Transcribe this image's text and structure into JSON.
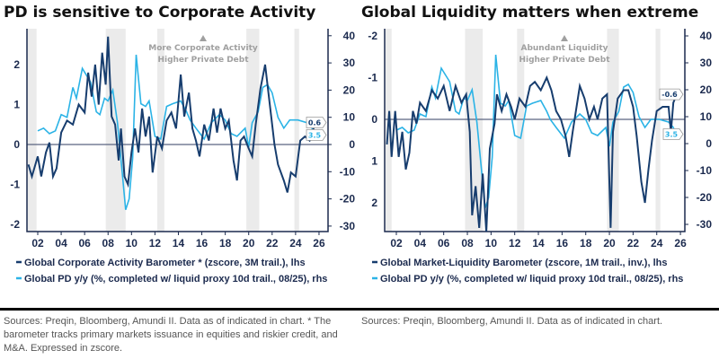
{
  "colors": {
    "dark": "#173d6e",
    "light": "#2bb3e6",
    "axis": "#1b2a4e",
    "shade": "#ebebeb"
  },
  "chart_data": [
    {
      "type": "line",
      "title": "PD is sensitive to Corporate Activity",
      "x_ticks": [
        "02",
        "04",
        "06",
        "08",
        "10",
        "12",
        "14",
        "16",
        "18",
        "20",
        "22",
        "24",
        "26"
      ],
      "y_left_ticks": [
        "2",
        "1",
        "0",
        "-1",
        "-2"
      ],
      "y_left_range": [
        -2.2,
        2.9
      ],
      "y_right_ticks": [
        "40",
        "30",
        "20",
        "10",
        "0",
        "-10",
        "-20",
        "-30"
      ],
      "y_right_range": [
        -32,
        43
      ],
      "annotation": [
        "More Corporate Activity",
        "Higher Private Debt"
      ],
      "shaded_periods": [
        [
          2001.1,
          2001.9
        ],
        [
          2007.8,
          2009.5
        ],
        [
          2012.2,
          2012.8
        ],
        [
          2019.8,
          2020.9
        ],
        [
          2023.9,
          2024.3
        ]
      ],
      "end_labels": {
        "lhs": "0.6",
        "rhs": "3.5"
      },
      "series": [
        {
          "name": "Global Corporate Activity Barometer * (zscore, 3M trail.), lhs",
          "axis": "left",
          "color": "dark",
          "x": [
            2001.2,
            2001.5,
            2002,
            2002.3,
            2002.7,
            2003,
            2003.3,
            2003.6,
            2004,
            2004.5,
            2005,
            2005.5,
            2006,
            2006.3,
            2006.6,
            2006.9,
            2007.2,
            2007.5,
            2007.8,
            2008,
            2008.3,
            2008.6,
            2008.9,
            2009.1,
            2009.4,
            2009.7,
            2010,
            2010.3,
            2010.6,
            2010.9,
            2011.2,
            2011.5,
            2011.8,
            2012.2,
            2012.6,
            2013,
            2013.4,
            2013.8,
            2014.2,
            2014.5,
            2014.9,
            2015.2,
            2015.5,
            2015.8,
            2016.2,
            2016.6,
            2017,
            2017.3,
            2017.6,
            2018,
            2018.3,
            2018.7,
            2019,
            2019.3,
            2019.6,
            2020,
            2020.3,
            2020.6,
            2021,
            2021.4,
            2021.8,
            2022.2,
            2022.5,
            2023,
            2023.3,
            2023.6,
            2024,
            2024.4,
            2024.8,
            2025.2,
            2025.7
          ],
          "y": [
            -0.5,
            -0.8,
            -0.3,
            -0.8,
            -0.2,
            0.05,
            -0.8,
            -0.6,
            0.3,
            0.6,
            0.5,
            1.0,
            0.8,
            1.8,
            1.2,
            2.0,
            1.0,
            2.3,
            1.5,
            2.7,
            0.7,
            0.5,
            -0.4,
            0.4,
            -0.8,
            -1.0,
            -0.2,
            0.4,
            -0.2,
            0.9,
            0.2,
            0.7,
            -0.7,
            0.2,
            -0.1,
            0.6,
            0.8,
            0.4,
            1.75,
            0.7,
            1.3,
            0.4,
            0.1,
            -0.3,
            0.5,
            0.1,
            0.9,
            0.3,
            0.9,
            0.4,
            0.6,
            -0.4,
            -0.9,
            0.1,
            0.2,
            -0.1,
            -0.3,
            0.5,
            1.4,
            2.0,
            1.0,
            0.0,
            -0.5,
            -0.9,
            -1.2,
            -0.7,
            -0.8,
            0.1,
            0.2,
            0.1,
            0.55
          ]
        },
        {
          "name": "Global PD y/y (%, completed w/ liquid proxy 10d trail., 08/25), rhs",
          "axis": "right",
          "color": "light",
          "x": [
            2002,
            2002.5,
            2003,
            2003.5,
            2004,
            2004.5,
            2005,
            2005.3,
            2005.8,
            2006.5,
            2007,
            2007.3,
            2007.7,
            2008,
            2008.4,
            2008.8,
            2009.2,
            2009.5,
            2009.8,
            2010.1,
            2010.4,
            2010.8,
            2011.2,
            2011.5,
            2012,
            2012.5,
            2013,
            2013.5,
            2014.2,
            2014.7,
            2015,
            2015.5,
            2016.2,
            2016.8,
            2017.5,
            2018,
            2018.5,
            2019,
            2019.7,
            2020,
            2020.3,
            2020.8,
            2021.2,
            2021.6,
            2022,
            2022.5,
            2023,
            2023.5,
            2024.2,
            2025,
            2025.4,
            2025.6
          ],
          "y": [
            5,
            6,
            4,
            5,
            11,
            10,
            21,
            17,
            28,
            23,
            12,
            11,
            17,
            16,
            20,
            8,
            -10,
            -24,
            -20,
            -5,
            33,
            15,
            14,
            16,
            3,
            2,
            14,
            15,
            16,
            12,
            9,
            6,
            2,
            8,
            11,
            9,
            4,
            3,
            6,
            -1,
            8,
            12,
            21,
            22,
            19,
            10,
            6,
            9,
            9,
            8,
            6,
            3.5
          ]
        }
      ]
    },
    {
      "type": "line",
      "title": "Global Liquidity matters when extreme",
      "x_ticks": [
        "02",
        "04",
        "06",
        "08",
        "10",
        "12",
        "14",
        "16",
        "18",
        "20",
        "22",
        "24",
        "26"
      ],
      "y_left_ticks": [
        "-2",
        "-1",
        "0",
        "1",
        "2"
      ],
      "y_left_range": [
        2.7,
        -2.2
      ],
      "y_left_inverted": true,
      "y_right_ticks": [
        "40",
        "30",
        "20",
        "10",
        "0",
        "-10",
        "-20",
        "-30"
      ],
      "y_right_range": [
        -32,
        43
      ],
      "annotation": [
        "Abundant Liquidity",
        "Higher Private Debt"
      ],
      "shaded_periods": [
        [
          2001.1,
          2001.6
        ],
        [
          2007.8,
          2009.3
        ],
        [
          2012.2,
          2012.8
        ],
        [
          2019.8,
          2020.8
        ],
        [
          2023.9,
          2024.3
        ]
      ],
      "end_labels": {
        "lhs": "-0.6",
        "rhs": "3.5"
      },
      "series": [
        {
          "name": "Global Market-Liquidity Barometer (zscore, 1M trail., inv.), lhs",
          "axis": "left",
          "color": "dark",
          "x": [
            2001.2,
            2001.4,
            2001.6,
            2001.9,
            2002.2,
            2002.5,
            2002.8,
            2003.1,
            2003.4,
            2003.7,
            2004,
            2004.5,
            2005,
            2005.5,
            2006,
            2006.5,
            2007,
            2007.5,
            2007.9,
            2008.2,
            2008.4,
            2008.7,
            2009,
            2009.3,
            2009.6,
            2009.9,
            2010.3,
            2010.5,
            2010.9,
            2011.3,
            2011.7,
            2012,
            2012.4,
            2012.9,
            2013.3,
            2013.7,
            2014.2,
            2014.7,
            2015.1,
            2015.5,
            2015.9,
            2016.3,
            2016.6,
            2016.9,
            2017.5,
            2017.9,
            2018.3,
            2018.7,
            2019,
            2019.4,
            2019.8,
            2020.1,
            2020.3,
            2020.7,
            2021.2,
            2021.6,
            2022,
            2022.3,
            2022.7,
            2023,
            2023.3,
            2023.6,
            2024,
            2024.5,
            2025,
            2025.2,
            2025.4,
            2025.7
          ],
          "y": [
            0.6,
            -0.2,
            0.9,
            -0.2,
            0.9,
            0.3,
            1.2,
            0.8,
            -0.2,
            0.1,
            -0.4,
            -0.2,
            -0.7,
            -0.5,
            -0.8,
            -0.2,
            -0.8,
            -0.4,
            -0.6,
            0.3,
            2.3,
            1.6,
            2.6,
            1.3,
            2.7,
            0.7,
            0.1,
            -0.6,
            -0.2,
            -0.6,
            -0.3,
            0.0,
            -0.5,
            -0.3,
            -0.8,
            -0.9,
            -0.7,
            -1.0,
            -0.7,
            -0.2,
            0.0,
            0.4,
            0.9,
            0.3,
            -0.8,
            -0.5,
            0.0,
            -0.3,
            0.0,
            -0.5,
            -0.6,
            2.6,
            0.3,
            -0.5,
            -0.7,
            -0.7,
            -0.3,
            0.4,
            1.5,
            2.0,
            1.2,
            0.5,
            -0.2,
            -0.3,
            -0.3,
            0.3,
            -0.4,
            -0.6
          ]
        },
        {
          "name": "Global PD y/y (%, completed w/ liquid proxy 10d trail., 08/25), rhs",
          "axis": "right",
          "color": "light",
          "x": [
            2002,
            2002.5,
            2003,
            2003.5,
            2004,
            2004.5,
            2005,
            2005.3,
            2005.8,
            2006.5,
            2007,
            2007.3,
            2007.7,
            2008,
            2008.4,
            2008.8,
            2009.2,
            2009.5,
            2009.8,
            2010.1,
            2010.4,
            2010.8,
            2011.2,
            2011.5,
            2012,
            2012.5,
            2013,
            2013.5,
            2014.2,
            2014.7,
            2015,
            2015.5,
            2016.2,
            2016.8,
            2017.5,
            2018,
            2018.5,
            2019,
            2019.7,
            2020,
            2020.3,
            2020.8,
            2021.2,
            2021.6,
            2022,
            2022.5,
            2023,
            2023.5,
            2024.2,
            2025,
            2025.4,
            2025.6
          ],
          "y": [
            5,
            6,
            4,
            5,
            11,
            10,
            21,
            17,
            28,
            23,
            12,
            11,
            17,
            16,
            20,
            8,
            -10,
            -24,
            -20,
            -5,
            33,
            15,
            14,
            16,
            3,
            2,
            14,
            15,
            16,
            12,
            9,
            6,
            2,
            8,
            11,
            9,
            4,
            3,
            6,
            -1,
            8,
            12,
            21,
            22,
            19,
            10,
            6,
            9,
            9,
            8,
            6,
            3.5
          ]
        }
      ]
    }
  ],
  "sources": {
    "left": [
      "Sources: Preqin, Bloomberg, Amundi II. Data as of indicated in chart. * The",
      "barometer tracks primary markets issuance in equities and riskier credit, and",
      "M&A. Expressed in zscore."
    ],
    "right": [
      "Sources: Preqin, Bloomberg, Amundi II.  Data as of indicated in chart."
    ]
  }
}
